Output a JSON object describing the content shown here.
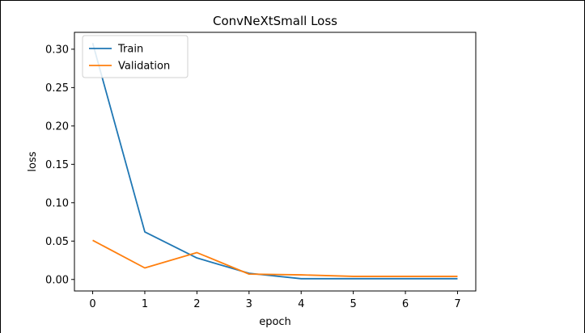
{
  "chart_data": {
    "type": "line",
    "title": "ConvNeXtSmall Loss",
    "xlabel": "epoch",
    "ylabel": "loss",
    "x": [
      0,
      1,
      2,
      3,
      4,
      5,
      6,
      7
    ],
    "xticks": [
      "0",
      "1",
      "2",
      "3",
      "4",
      "5",
      "6",
      "7"
    ],
    "yticks": [
      "0.00",
      "0.05",
      "0.10",
      "0.15",
      "0.20",
      "0.25",
      "0.30"
    ],
    "xlim": [
      -0.35,
      7.35
    ],
    "ylim": [
      -0.015,
      0.322
    ],
    "grid": false,
    "legend_position": "top-left",
    "series": [
      {
        "name": "Train",
        "color": "#1f77b4",
        "values": [
          0.308,
          0.062,
          0.028,
          0.008,
          0.001,
          0.001,
          0.001,
          0.001
        ]
      },
      {
        "name": "Validation",
        "color": "#ff7f0e",
        "values": [
          0.051,
          0.015,
          0.035,
          0.007,
          0.006,
          0.004,
          0.004,
          0.004
        ]
      }
    ]
  }
}
